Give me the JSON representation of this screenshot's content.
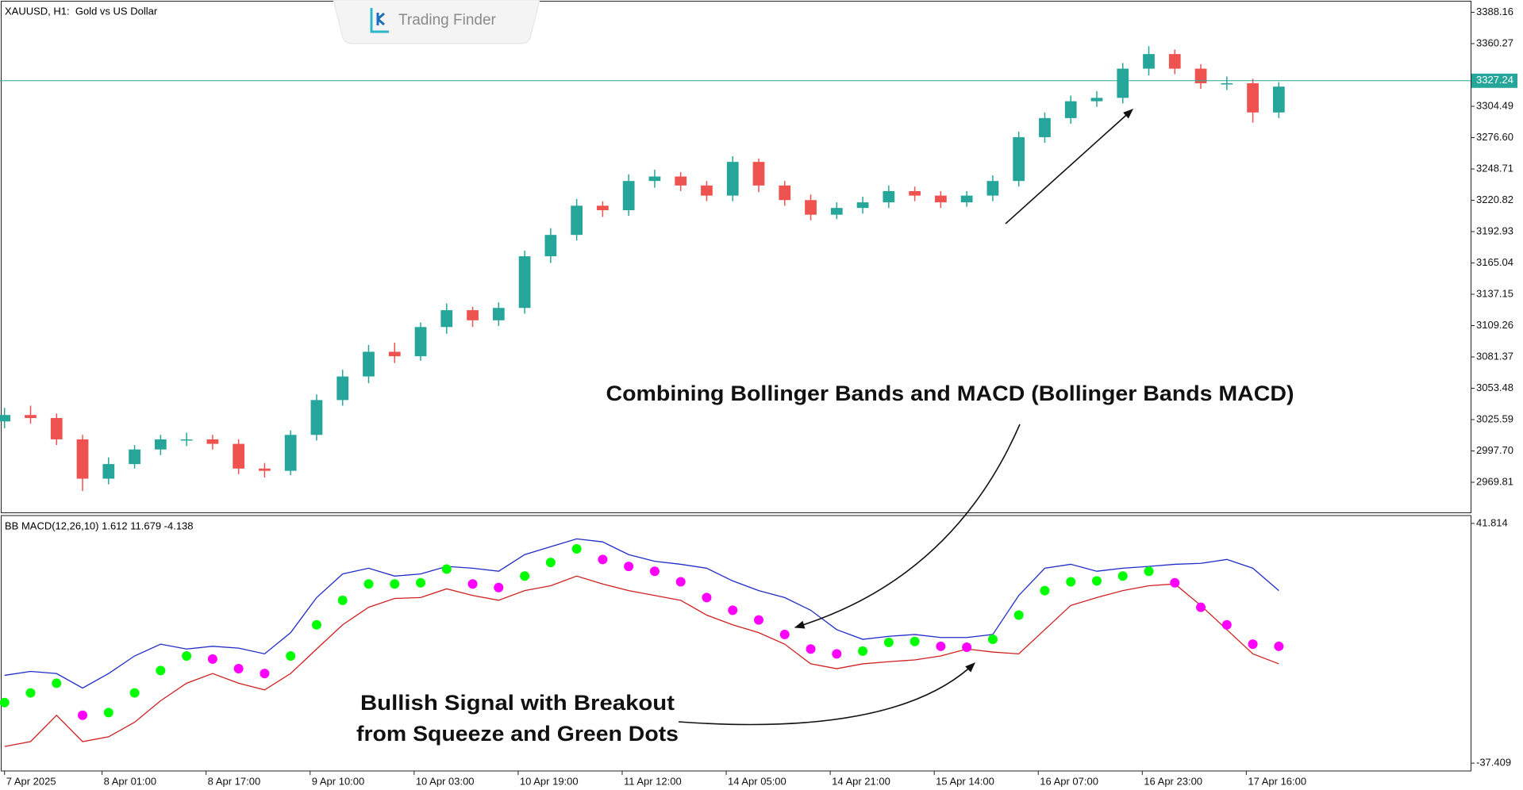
{
  "logo": "Trading Finder",
  "chart_data": [
    {
      "type": "candlestick",
      "title": "XAUUSD, H1:  Gold vs US Dollar",
      "up_color": "#26a69a",
      "down_color": "#ef5350",
      "x": [
        0,
        4,
        8,
        12,
        16,
        20,
        24,
        28,
        32,
        36,
        40,
        44,
        48,
        52,
        56,
        60,
        64,
        68,
        72,
        76,
        80,
        84,
        88,
        92,
        96,
        100,
        104,
        108,
        112,
        116,
        120,
        124,
        128,
        132,
        136,
        140,
        144,
        148,
        152,
        156,
        160,
        164,
        168,
        172,
        176,
        180,
        184,
        188,
        192,
        196
      ],
      "open": [
        3024,
        3029.7,
        3027,
        3008,
        2973,
        2986,
        2999,
        3008,
        3008,
        3004,
        2982,
        2980,
        3012,
        3043,
        3064,
        3086,
        3082,
        3108,
        3123,
        3114,
        3125,
        3171,
        3190,
        3216,
        3212,
        3238,
        3242,
        3234,
        3225,
        3255,
        3234,
        3221,
        3208,
        3214,
        3219,
        3229,
        3225,
        3219,
        3225,
        3238,
        3277,
        3294,
        3309,
        3312,
        3338,
        3351,
        3338,
        3325,
        3325,
        3299
      ],
      "high": [
        3036,
        3038,
        3031,
        3012,
        2992,
        3003,
        3012,
        3014,
        3012,
        3008,
        2987,
        3016,
        3048,
        3070,
        3092,
        3094,
        3112,
        3129,
        3126,
        3130,
        3176,
        3196,
        3222,
        3220,
        3244,
        3248,
        3246,
        3238,
        3260,
        3258,
        3238,
        3226,
        3219,
        3224,
        3234,
        3233,
        3229,
        3229,
        3243,
        3282,
        3299,
        3314,
        3318,
        3343,
        3358,
        3355,
        3342,
        3331,
        3329,
        3326
      ],
      "low": [
        3018,
        3022,
        3003,
        2962,
        2968,
        2982,
        2994,
        3002,
        2999,
        2977,
        2974,
        2976,
        3007,
        3038,
        3058,
        3076,
        3078,
        3102,
        3108,
        3109,
        3120,
        3165,
        3185,
        3206,
        3207,
        3232,
        3229,
        3220,
        3220,
        3228,
        3216,
        3203,
        3204,
        3209,
        3214,
        3220,
        3214,
        3215,
        3220,
        3233,
        3272,
        3289,
        3304,
        3307,
        3332,
        3333,
        3320,
        3319,
        3290,
        3294
      ],
      "close": [
        3029.7,
        3027,
        3008,
        2973,
        2986,
        2999,
        3008,
        3008,
        3004,
        2982,
        2980,
        3012,
        3043,
        3064,
        3086,
        3082,
        3108,
        3123,
        3114,
        3125,
        3171,
        3190,
        3216,
        3212,
        3238,
        3242,
        3234,
        3225,
        3255,
        3234,
        3221,
        3208,
        3214,
        3219,
        3229,
        3225,
        3219,
        3225,
        3238,
        3277,
        3294,
        3309,
        3312,
        3338,
        3351,
        3338,
        3325,
        3325,
        3299,
        3322
      ],
      "last_price": 3327.24,
      "last_price_color": "#26a69a",
      "xlim": [
        -0.7,
        225.5
      ],
      "ylim": [
        2943,
        3397
      ],
      "yticks": [
        3388.16,
        3360.27,
        3304.49,
        {
          "value": 3276.6,
          "label": "3276.60"
        },
        3248.71,
        3220.82,
        3192.93,
        3165.04,
        3137.15,
        3109.26,
        3081.37,
        3053.48,
        3025.59,
        {
          "value": 2997.7,
          "label": "2997.70"
        },
        2969.81
      ],
      "xticks": [
        {
          "value": 0,
          "label": "7 Apr 2025"
        },
        {
          "value": 15,
          "label": "8 Apr 01:00"
        },
        {
          "value": 31,
          "label": "8 Apr 17:00"
        },
        {
          "value": 47,
          "label": "9 Apr 10:00"
        },
        {
          "value": 63,
          "label": "10 Apr 03:00"
        },
        {
          "value": 79,
          "label": "10 Apr 19:00"
        },
        {
          "value": 95,
          "label": "11 Apr 12:00"
        },
        {
          "value": 111,
          "label": "14 Apr 05:00"
        },
        {
          "value": 127,
          "label": "14 Apr 21:00"
        },
        {
          "value": 143,
          "label": "15 Apr 14:00"
        },
        {
          "value": 159,
          "label": "16 Apr 07:00"
        },
        {
          "value": 175,
          "label": "16 Apr 23:00"
        },
        {
          "value": 191,
          "label": "17 Apr 16:00"
        }
      ],
      "annotations": [
        "Combining Bollinger Bands and MACD (Bollinger Bands MACD)",
        "Bullish Signal with Breakout",
        "from Squeeze and Green Dots"
      ]
    },
    {
      "type": "bbmacd",
      "title": "BB MACD(12,26,10) 1.612 11.679 -4.138",
      "x": [
        0,
        4,
        8,
        12,
        16,
        20,
        24,
        28,
        32,
        36,
        40,
        44,
        48,
        52,
        56,
        60,
        64,
        68,
        72,
        76,
        80,
        84,
        88,
        92,
        96,
        100,
        104,
        108,
        112,
        116,
        120,
        124,
        128,
        132,
        136,
        140,
        144,
        148,
        152,
        156,
        160,
        164,
        168,
        172,
        176,
        180,
        184,
        188,
        192,
        196
      ],
      "xlim": [
        -0.7,
        225.5
      ],
      "ylim": [
        -40,
        44.4
      ],
      "yticks": [
        41.814,
        -37.409
      ],
      "up_color": "#00ff00",
      "down_color": "#ff00ff",
      "series": [
        {
          "name": "upper",
          "color": "#1e2cc8",
          "values": [
            -8.4,
            -7.1,
            -7.8,
            -12.6,
            -7.8,
            -2.0,
            1.9,
            0.3,
            1.2,
            0.6,
            -1.3,
            5.7,
            17.3,
            25.1,
            27.0,
            24.4,
            25.1,
            27.6,
            27.0,
            26.0,
            31.5,
            34.1,
            36.7,
            35.7,
            31.5,
            29.3,
            28.3,
            27.0,
            22.8,
            19.6,
            17.3,
            13.1,
            6.7,
            3.5,
            4.5,
            5.1,
            4.1,
            4.1,
            5.1,
            18.0,
            27.0,
            28.3,
            26.0,
            27.0,
            27.6,
            28.3,
            28.6,
            29.9,
            27.0,
            19.6
          ]
        },
        {
          "name": "lower",
          "color": "#d02020",
          "values": [
            -31.9,
            -30.3,
            -21.6,
            -30.3,
            -28.7,
            -23.9,
            -16.8,
            -11.0,
            -7.8,
            -11.0,
            -13.2,
            -7.8,
            0.3,
            8.3,
            14.1,
            17.0,
            17.3,
            20.2,
            18.0,
            16.4,
            19.6,
            21.2,
            24.4,
            21.8,
            19.6,
            18.0,
            16.4,
            11.5,
            8.3,
            5.7,
            1.9,
            -4.6,
            -6.2,
            -4.6,
            -3.9,
            -3.3,
            -2.0,
            0.3,
            -0.7,
            -1.3,
            6.7,
            14.7,
            17.3,
            19.6,
            21.2,
            21.8,
            14.7,
            6.7,
            -1.3,
            -4.6
          ]
        },
        {
          "name": "macd",
          "values": [
            -17.4,
            -14.2,
            -11.0,
            -21.6,
            -20.7,
            -14.2,
            -6.8,
            -2.0,
            -3.0,
            -6.2,
            -7.8,
            -2.0,
            8.3,
            16.4,
            21.8,
            21.8,
            22.2,
            26.7,
            21.8,
            20.6,
            24.4,
            28.9,
            33.4,
            29.9,
            27.6,
            26.0,
            22.5,
            17.3,
            13.1,
            9.9,
            5.1,
            0.3,
            -1.3,
            -0.4,
            2.5,
            2.8,
            1.2,
            0.9,
            3.5,
            11.5,
            19.6,
            22.5,
            22.8,
            24.4,
            26.0,
            22.2,
            14.1,
            8.3,
            1.9,
            1.2
          ]
        }
      ]
    }
  ]
}
